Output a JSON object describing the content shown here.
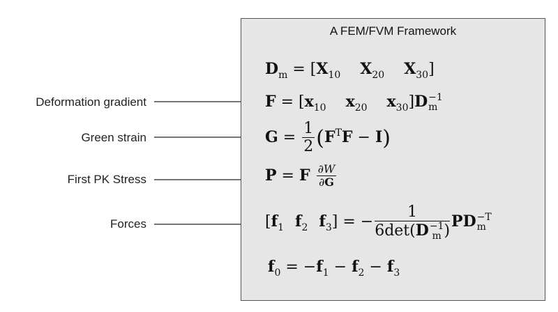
{
  "title": "A FEM/FVM Framework",
  "labels": {
    "deformation_gradient": "Deformation gradient",
    "green_strain": "Green strain",
    "first_pk_stress": "First PK Stress",
    "forces": "Forces"
  },
  "colors": {
    "panel_bg": "#e6e6e6",
    "panel_border": "#555555",
    "text": "#111111"
  }
}
